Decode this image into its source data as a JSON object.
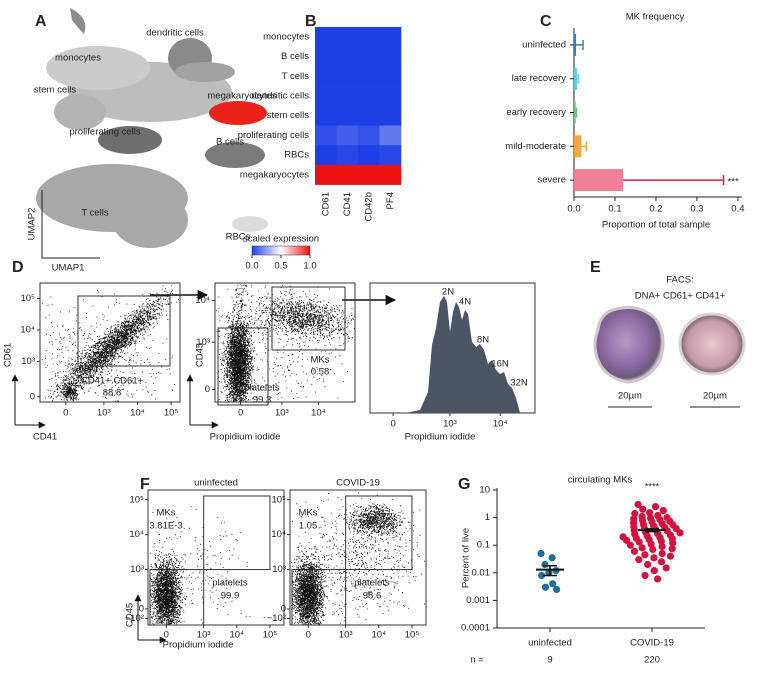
{
  "A": {
    "letter": "A",
    "clusters": [
      "dendritic cells",
      "monocytes",
      "stem cells",
      "megakaryocytes",
      "proliferating cells",
      "B cells",
      "T cells",
      "RBCs"
    ],
    "label_colors": [
      "#666666",
      "#c4c4c4",
      "#b5b5b5",
      "#e8221b",
      "#555555",
      "#777777",
      "#666666",
      "#d4d4d4"
    ],
    "x_label": "UMAP1",
    "y_label": "UMAP2"
  },
  "B": {
    "letter": "B",
    "rows": [
      "monocytes",
      "B cells",
      "T cells",
      "dendritic cells",
      "stem cells",
      "proliferating cells",
      "RBCs",
      "megakaryocytes"
    ],
    "columns": [
      "CD61",
      "CD41",
      "CD42b",
      "PF4"
    ],
    "values": [
      [
        0,
        0,
        0,
        0
      ],
      [
        0,
        0,
        0,
        0
      ],
      [
        0,
        0,
        0,
        0
      ],
      [
        0,
        0,
        0,
        0
      ],
      [
        0,
        0,
        0,
        0
      ],
      [
        0.04,
        0.08,
        0.05,
        0.15
      ],
      [
        0,
        0.02,
        0,
        0.02
      ],
      [
        1,
        1,
        1,
        1
      ]
    ],
    "colormap": [
      "#1f3fe6",
      "#ffffff",
      "#ee1111"
    ],
    "colorbar": {
      "title": "scaled expression",
      "lim": [
        0,
        1
      ],
      "ticks": [
        {
          "value": 0,
          "label": "0.0"
        },
        0.5,
        {
          "value": 1,
          "label": "1.0"
        }
      ]
    }
  },
  "C": {
    "letter": "C",
    "title": "MK frequency",
    "categories": [
      "uninfected",
      "late recovery",
      "early recovery",
      "mild-moderate",
      "severe"
    ],
    "values": [
      0.005,
      0.007,
      0.004,
      0.018,
      0.12
    ],
    "errors": [
      0.017,
      0.003,
      0.002,
      0.012,
      0.245
    ],
    "colors": [
      "#2f7fb8",
      "#5ec8ef",
      "#62c26a",
      "#f4a641",
      "#f07f95"
    ],
    "error_color": "#d6204a",
    "xlim": [
      0,
      0.41
    ],
    "xticks": [
      {
        "value": 0,
        "label": "0.0"
      },
      0.1,
      0.2,
      0.3,
      0.4
    ],
    "x_label": "Proportion of total sample",
    "annotation": "***"
  },
  "D": {
    "letter": "D",
    "plots": [
      {
        "x_label": "CD41",
        "y_label": "CD61",
        "xlim": [
          -425,
          183000
        ],
        "ylim": [
          -58,
          311000
        ],
        "xticks": [
          0,
          {
            "value": 1000,
            "label": "10³"
          },
          {
            "value": 10000,
            "label": "10⁴"
          },
          {
            "value": 100000,
            "label": "10⁵"
          }
        ],
        "yticks": [
          0,
          {
            "value": 1000,
            "label": "10³"
          },
          {
            "value": 10000,
            "label": "10⁴"
          },
          {
            "value": 100000,
            "label": "10⁵"
          }
        ],
        "gates": [
          {
            "name": "CD41+ CD61+",
            "value": 88.8
          }
        ]
      },
      {
        "x_label": "Propidium iodide",
        "y_label": "CD45",
        "xlim": [
          -360,
          100000
        ],
        "ylim": [
          -110,
          26000
        ],
        "xticks": [
          0,
          {
            "value": 1000,
            "label": "10³"
          },
          {
            "value": 10000,
            "label": "10⁴"
          }
        ],
        "yticks": [
          0,
          {
            "value": 1000,
            "label": "10³"
          },
          {
            "value": 10000,
            "label": "10⁴"
          }
        ],
        "gates": [
          {
            "name": "MKs",
            "value": 0.58
          },
          {
            "name": "platelets",
            "value": 99.3
          }
        ]
      },
      {
        "x_label": "Propidium iodide",
        "xlim": [
          -190,
          49000
        ],
        "xticks": [
          0,
          {
            "value": 1000,
            "label": "10³"
          },
          {
            "value": 10000,
            "label": "10⁴"
          }
        ],
        "peaks": [
          "2N",
          "4N",
          "8N",
          "16N",
          "32N"
        ]
      }
    ]
  },
  "E": {
    "letter": "E",
    "title": "FACS:",
    "subtitle": "DNA+ CD61+ CD41+",
    "scale_bars": [
      "20µm",
      "20µm"
    ]
  },
  "F": {
    "letter": "F",
    "x_label": "Propidium iodide",
    "y_label": "CD45",
    "xlim": [
      -245,
      265000
    ],
    "ylim": [
      -190,
      190000
    ],
    "xticks": [
      0,
      {
        "value": 1000,
        "label": "10³"
      },
      {
        "value": 10000,
        "label": "10⁴"
      },
      {
        "value": 100000,
        "label": "10⁵"
      }
    ],
    "yticks": [
      {
        "value": -100,
        "label": "−10²"
      },
      0,
      {
        "value": 1000,
        "label": "10³"
      },
      {
        "value": 10000,
        "label": "10⁴"
      },
      {
        "value": 100000,
        "label": "10⁵"
      }
    ],
    "plots": [
      {
        "title": "uninfected",
        "gates": [
          {
            "name": "MKs",
            "value": "3.81E-3"
          },
          {
            "name": "platelets",
            "value": 99.9
          }
        ]
      },
      {
        "title": "COVID-19",
        "gates": [
          {
            "name": "MKs",
            "value": 1.05
          },
          {
            "name": "platelets",
            "value": 98.6
          }
        ]
      }
    ]
  },
  "G": {
    "letter": "G",
    "title": "circulating MKs",
    "y_label": "Percent of live",
    "yscale": "log",
    "ylim": [
      0.0001,
      10
    ],
    "yticks": [
      10,
      1,
      0.1,
      0.01,
      0.001,
      0.0001
    ],
    "n_label": "n =",
    "annotation": "****",
    "groups": [
      {
        "name": "uninfected",
        "n": 9,
        "color": "#1f6f98",
        "mean": 0.013,
        "sem": 0.005,
        "values": [
          0.05,
          0.035,
          0.02,
          0.012,
          0.01,
          0.008,
          0.004,
          0.003,
          0.0025
        ]
      },
      {
        "name": "COVID-19",
        "n": 220,
        "color": "#d4123f",
        "mean": 0.35,
        "sem": 0.04,
        "values": [
          3,
          2.5,
          2,
          1.8,
          1.5,
          1.4,
          1.2,
          1.1,
          1,
          0.95,
          0.9,
          0.85,
          0.8,
          0.75,
          0.7,
          0.65,
          0.6,
          0.58,
          0.55,
          0.5,
          0.48,
          0.45,
          0.42,
          0.4,
          0.38,
          0.35,
          0.33,
          0.3,
          0.28,
          0.26,
          0.25,
          0.23,
          0.22,
          0.2,
          0.19,
          0.18,
          0.17,
          0.16,
          0.15,
          0.14,
          0.13,
          0.12,
          0.11,
          0.1,
          0.09,
          0.08,
          0.075,
          0.07,
          0.06,
          0.05,
          0.045,
          0.04,
          0.035,
          0.03,
          0.025,
          0.02,
          0.015,
          0.012,
          0.008,
          0.006
        ]
      }
    ]
  }
}
